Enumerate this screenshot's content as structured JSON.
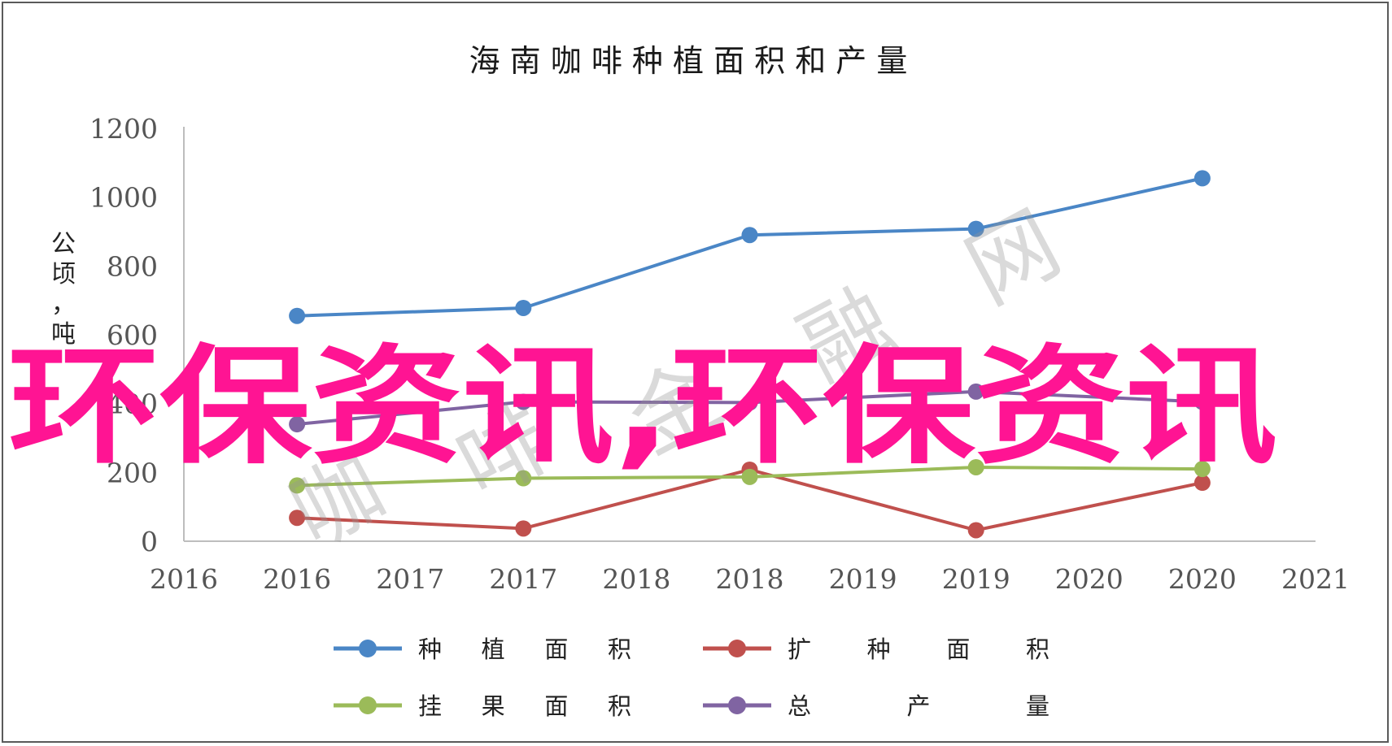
{
  "chart_data": {
    "type": "line",
    "title": "海 南 咖 啡 种 植 面 积 和 产 量",
    "ylabel": "公顷，吨",
    "xlabel": "",
    "ylim": [
      0,
      1200
    ],
    "yticks": [
      0,
      200,
      400,
      600,
      800,
      1000,
      1200
    ],
    "x_axis_ticks": [
      "2016",
      "2016",
      "2017",
      "2017",
      "2018",
      "2018",
      "2019",
      "2019",
      "2020",
      "2020",
      "2021"
    ],
    "x": [
      "2016",
      "2017",
      "2018",
      "2019",
      "2020"
    ],
    "series": [
      {
        "name": "种 植 面 积",
        "color": "#4a86c6",
        "values": [
          655,
          678,
          890,
          908,
          1055
        ]
      },
      {
        "name": "扩 种 面 积",
        "color": "#c0504d",
        "values": [
          68,
          37,
          208,
          32,
          170
        ]
      },
      {
        "name": "挂 果 面 积",
        "color": "#9bbb59",
        "values": [
          162,
          183,
          187,
          215,
          210
        ]
      },
      {
        "name": "总 产 量",
        "color": "#8064a2",
        "values": [
          340,
          405,
          403,
          435,
          405
        ]
      }
    ],
    "legend": "bottom",
    "grid": false
  },
  "watermark": {
    "main": "环保资讯,环保资讯",
    "grey": [
      "咖",
      "啡",
      "金",
      "融",
      "网"
    ]
  }
}
